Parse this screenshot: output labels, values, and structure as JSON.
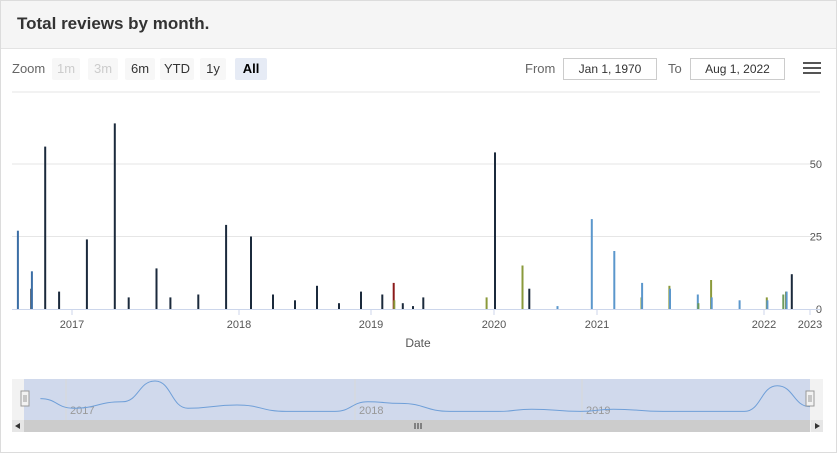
{
  "title": "Total reviews by month.",
  "range_selector": {
    "zoom_label": "Zoom",
    "buttons": [
      {
        "label": "1m",
        "state": "disabled"
      },
      {
        "label": "3m",
        "state": "disabled"
      },
      {
        "label": "6m",
        "state": "normal"
      },
      {
        "label": "YTD",
        "state": "normal"
      },
      {
        "label": "1y",
        "state": "normal"
      },
      {
        "label": "All",
        "state": "active"
      }
    ],
    "from_label": "From",
    "from_value": "Jan 1, 1970",
    "to_label": "To",
    "to_value": "Aug 1, 2022"
  },
  "menu_icon": "hamburger-menu-icon",
  "chart_data": {
    "type": "bar",
    "title": "Total reviews by month.",
    "xlabel": "Date",
    "ylabel": "",
    "x_ticks": [
      "2017",
      "2018",
      "2019",
      "2020",
      "2021",
      "2022",
      "2023"
    ],
    "y_ticks": [
      0,
      25,
      50
    ],
    "ylim": [
      0,
      65
    ],
    "grid": true,
    "series": [
      {
        "color": "#1b2a3c",
        "points": [
          {
            "x": "2016-10",
            "y": 7
          },
          {
            "x": "2016-11",
            "y": 56
          },
          {
            "x": "2016-12",
            "y": 6
          },
          {
            "x": "2017-02",
            "y": 24
          },
          {
            "x": "2017-04",
            "y": 64
          },
          {
            "x": "2017-05",
            "y": 4
          },
          {
            "x": "2017-07",
            "y": 14
          },
          {
            "x": "2017-08",
            "y": 4
          },
          {
            "x": "2017-10",
            "y": 5
          },
          {
            "x": "2017-12",
            "y": 29
          },
          {
            "x": "2018-02",
            "y": 25
          },
          {
            "x": "2018-04",
            "y": 5
          },
          {
            "x": "2018-06",
            "y": 3
          },
          {
            "x": "2018-08",
            "y": 8
          },
          {
            "x": "2018-10",
            "y": 2
          },
          {
            "x": "2018-12",
            "y": 6
          },
          {
            "x": "2019-02",
            "y": 5
          },
          {
            "x": "2019-04",
            "y": 2
          },
          {
            "x": "2019-05",
            "y": 1
          },
          {
            "x": "2019-06",
            "y": 4
          },
          {
            "x": "2020-01",
            "y": 54
          },
          {
            "x": "2020-05",
            "y": 7
          },
          {
            "x": "2022-08",
            "y": 12
          }
        ]
      },
      {
        "color": "#3b6ea5",
        "points": [
          {
            "x": "2016-09",
            "y": 27
          },
          {
            "x": "2016-10",
            "y": 13
          }
        ]
      },
      {
        "color": "#8b1a1a",
        "points": [
          {
            "x": "2019-03",
            "y": 9
          }
        ]
      },
      {
        "color": "#8a9a3b",
        "points": [
          {
            "x": "2019-03",
            "y": 3
          },
          {
            "x": "2019-12",
            "y": 4
          },
          {
            "x": "2020-04",
            "y": 15
          },
          {
            "x": "2021-04",
            "y": 4
          },
          {
            "x": "2021-06",
            "y": 8
          },
          {
            "x": "2021-09",
            "y": 10
          },
          {
            "x": "2022-01",
            "y": 4
          },
          {
            "x": "2022-06",
            "y": 6
          }
        ]
      },
      {
        "color": "#5b97cc",
        "points": [
          {
            "x": "2020-08",
            "y": 1
          },
          {
            "x": "2020-12",
            "y": 31
          },
          {
            "x": "2021-02",
            "y": 20
          },
          {
            "x": "2021-04",
            "y": 9
          },
          {
            "x": "2021-06",
            "y": 7
          },
          {
            "x": "2021-08",
            "y": 5
          },
          {
            "x": "2021-09",
            "y": 4
          },
          {
            "x": "2021-11",
            "y": 3
          },
          {
            "x": "2022-01",
            "y": 3
          },
          {
            "x": "2022-06",
            "y": 6
          }
        ]
      },
      {
        "color": "#6d9b5b",
        "points": [
          {
            "x": "2021-08",
            "y": 2
          },
          {
            "x": "2022-05",
            "y": 5
          }
        ]
      }
    ]
  },
  "navigator": {
    "tick_labels": [
      "2017",
      "2018",
      "2019"
    ],
    "series": [
      {
        "x": "2016-10",
        "y": 0.45
      },
      {
        "x": "2016-12",
        "y": 0.15
      },
      {
        "x": "2017-03",
        "y": 0.35
      },
      {
        "x": "2017-05",
        "y": 1.0
      },
      {
        "x": "2017-07",
        "y": 0.15
      },
      {
        "x": "2017-10",
        "y": 0.25
      },
      {
        "x": "2018-01",
        "y": 0.05
      },
      {
        "x": "2018-04",
        "y": 0.05
      },
      {
        "x": "2018-06",
        "y": 0.35
      },
      {
        "x": "2018-08",
        "y": 0.3
      },
      {
        "x": "2018-11",
        "y": 0.05
      },
      {
        "x": "2019-02",
        "y": 0.05
      },
      {
        "x": "2019-04",
        "y": 0.12
      },
      {
        "x": "2019-07",
        "y": 0.05
      },
      {
        "x": "2019-09",
        "y": 0.12
      },
      {
        "x": "2019-12",
        "y": 0.05
      },
      {
        "x": "2020-05",
        "y": 0.05
      },
      {
        "x": "2020-07",
        "y": 0.85
      },
      {
        "x": "2020-09",
        "y": 0.2
      }
    ]
  }
}
